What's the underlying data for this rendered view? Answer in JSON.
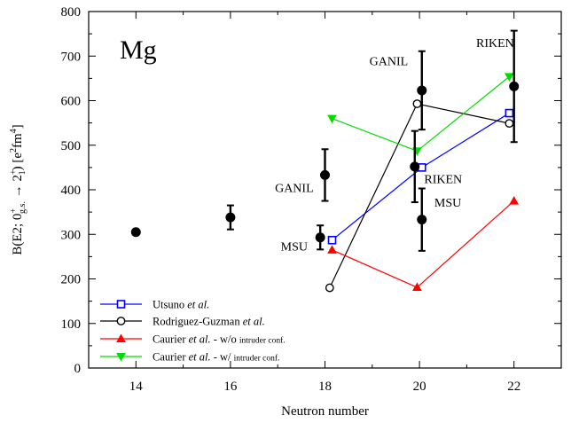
{
  "chart_data": {
    "type": "scatter",
    "panel_label": "Mg",
    "xlabel": "Neutron number",
    "ylabel_parts": {
      "main": "B(E2; 0",
      "sup1": "+",
      "sub1": "g.s.",
      "arrow": " → 2",
      "sup2": "+",
      "sub2": "1",
      "units_open": ") [e",
      "units_sup1": "2",
      "units_mid": "fm",
      "units_sup2": "4",
      "units_close": "]"
    },
    "xlim": [
      13,
      23
    ],
    "ylim": [
      0,
      800
    ],
    "x_ticks": [
      14,
      16,
      18,
      20,
      22
    ],
    "y_ticks": [
      0,
      100,
      200,
      300,
      400,
      500,
      600,
      700,
      800
    ],
    "x_minor_ticks": [
      15,
      17,
      19,
      21
    ],
    "y_minor_ticks": [
      50,
      150,
      250,
      350,
      450,
      550,
      650,
      750
    ],
    "experimental": [
      {
        "x": 14,
        "y": 305
      },
      {
        "x": 16,
        "y": 338,
        "err": 27
      },
      {
        "x": 17.9,
        "y": 293,
        "err": 27
      },
      {
        "x": 18.0,
        "y": 433,
        "err": 58
      },
      {
        "x": 19.9,
        "y": 452,
        "err": 80
      },
      {
        "x": 20.05,
        "y": 623,
        "err": 88
      },
      {
        "x": 20.05,
        "y": 333,
        "err": 70
      },
      {
        "x": 22,
        "y": 632,
        "err": 125
      }
    ],
    "annotations": [
      {
        "text": "GANIL",
        "x": 17.35,
        "y": 395
      },
      {
        "text": "MSU",
        "x": 17.35,
        "y": 264
      },
      {
        "text": "GANIL",
        "x": 19.35,
        "y": 680
      },
      {
        "text": "RIKEN",
        "x": 20.5,
        "y": 415
      },
      {
        "text": "MSU",
        "x": 20.6,
        "y": 362
      },
      {
        "text": "RIKEN",
        "x": 21.6,
        "y": 720
      }
    ],
    "series": [
      {
        "name_plain": "Utsuno ",
        "name_italic": "et al.",
        "name_suffix": "",
        "color": "#0000ff",
        "marker": "square",
        "x": [
          18.15,
          20.05,
          21.9
        ],
        "y": [
          287,
          450,
          572
        ]
      },
      {
        "name_plain": "Rodriguez-Guzman ",
        "name_italic": "et al.",
        "name_suffix": "",
        "color": "#000000",
        "marker": "circle",
        "x": [
          18.1,
          19.95,
          21.9
        ],
        "y": [
          180,
          593,
          549
        ]
      },
      {
        "name_plain": "Caurier ",
        "name_italic": "et al.",
        "name_suffix": " - w/o ",
        "name_small": "intruder conf.",
        "color": "#ff0000",
        "marker": "triangle-up",
        "x": [
          18.15,
          19.95,
          22
        ],
        "y": [
          265,
          181,
          375
        ]
      },
      {
        "name_plain": "Caurier ",
        "name_italic": "et al.",
        "name_suffix": " - w/ ",
        "name_small": "intruder conf.",
        "color": "#00dd00",
        "marker": "triangle-down",
        "x": [
          18.15,
          19.95,
          21.9
        ],
        "y": [
          560,
          487,
          654
        ]
      }
    ],
    "grid": false,
    "legend_position": "bottom-left"
  }
}
